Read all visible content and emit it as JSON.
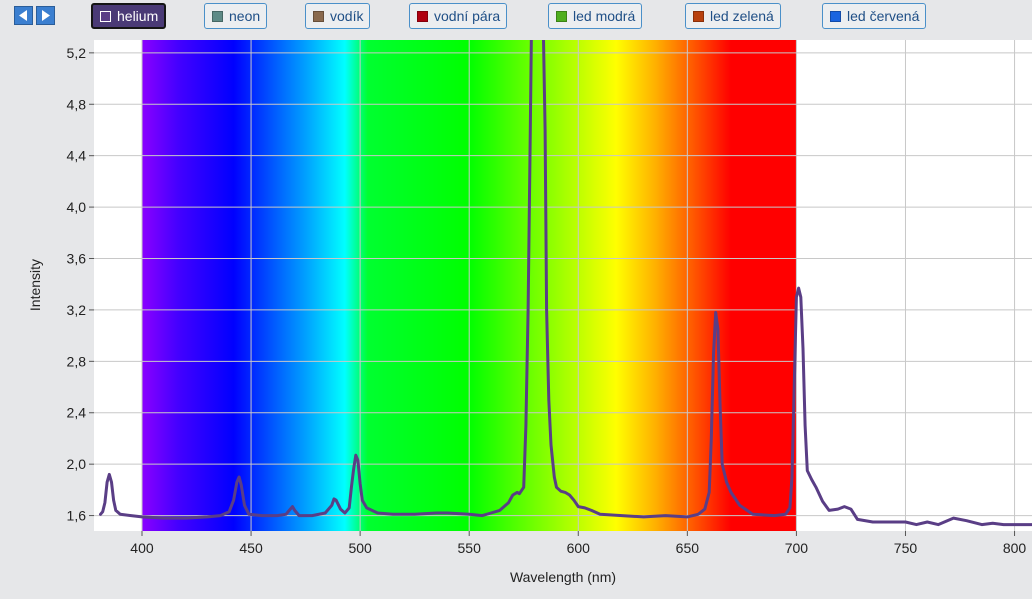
{
  "toolbar": {
    "prev_icon": "triangle-left-icon",
    "next_icon": "triangle-right-icon",
    "legend": [
      {
        "label": "helium",
        "color": "#5a3e86",
        "active": true
      },
      {
        "label": "neon",
        "color": "#5e8a86",
        "active": false
      },
      {
        "label": "vodík",
        "color": "#8a6a4e",
        "active": false
      },
      {
        "label": "vodní pára",
        "color": "#b00010",
        "active": false
      },
      {
        "label": "led modrá",
        "color": "#4fae1e",
        "active": false
      },
      {
        "label": "led zelená",
        "color": "#b8410e",
        "active": false
      },
      {
        "label": "led červená",
        "color": "#1a64e0",
        "active": false
      }
    ]
  },
  "chart_data": {
    "type": "line",
    "title": "",
    "xlabel": "Wavelength (nm)",
    "ylabel": "Intensity",
    "xlim": [
      378,
      808
    ],
    "ylim": [
      1.48,
      5.3
    ],
    "x_ticks": [
      400,
      450,
      500,
      550,
      600,
      650,
      700,
      750,
      800
    ],
    "x_tick_labels": [
      "400",
      "450",
      "500",
      "550",
      "600",
      "650",
      "700",
      "750",
      "800"
    ],
    "y_ticks": [
      1.6,
      2.0,
      2.4,
      2.8,
      3.2,
      3.6,
      4.0,
      4.4,
      4.8,
      5.2
    ],
    "y_tick_labels": [
      "1,6",
      "2,0",
      "2,4",
      "2,8",
      "3,2",
      "3,6",
      "4,0",
      "4,4",
      "4,8",
      "5,2"
    ],
    "grid": true,
    "visible_spectrum_band": [
      400,
      700
    ],
    "series": [
      {
        "name": "helium",
        "color": "#5a3e86",
        "points": [
          [
            381,
            1.61
          ],
          [
            382,
            1.63
          ],
          [
            383,
            1.7
          ],
          [
            384,
            1.86
          ],
          [
            385,
            1.92
          ],
          [
            386,
            1.86
          ],
          [
            387,
            1.72
          ],
          [
            388,
            1.64
          ],
          [
            390,
            1.61
          ],
          [
            395,
            1.6
          ],
          [
            400,
            1.59
          ],
          [
            410,
            1.58
          ],
          [
            420,
            1.58
          ],
          [
            430,
            1.59
          ],
          [
            436,
            1.6
          ],
          [
            440,
            1.63
          ],
          [
            442,
            1.72
          ],
          [
            443.5,
            1.86
          ],
          [
            444.5,
            1.9
          ],
          [
            445.5,
            1.84
          ],
          [
            447,
            1.68
          ],
          [
            449,
            1.61
          ],
          [
            455,
            1.6
          ],
          [
            462,
            1.6
          ],
          [
            466,
            1.61
          ],
          [
            468,
            1.65
          ],
          [
            469,
            1.67
          ],
          [
            470,
            1.64
          ],
          [
            472,
            1.6
          ],
          [
            478,
            1.6
          ],
          [
            484,
            1.62
          ],
          [
            487,
            1.68
          ],
          [
            488,
            1.73
          ],
          [
            489,
            1.72
          ],
          [
            491,
            1.65
          ],
          [
            493,
            1.62
          ],
          [
            495,
            1.66
          ],
          [
            496,
            1.82
          ],
          [
            497,
            1.96
          ],
          [
            498,
            2.07
          ],
          [
            499,
            2.03
          ],
          [
            500,
            1.85
          ],
          [
            501,
            1.72
          ],
          [
            503,
            1.66
          ],
          [
            508,
            1.62
          ],
          [
            515,
            1.61
          ],
          [
            525,
            1.61
          ],
          [
            535,
            1.62
          ],
          [
            540,
            1.62
          ],
          [
            550,
            1.61
          ],
          [
            556,
            1.6
          ],
          [
            560,
            1.62
          ],
          [
            564,
            1.64
          ],
          [
            568,
            1.7
          ],
          [
            570,
            1.76
          ],
          [
            572,
            1.78
          ],
          [
            573,
            1.77
          ],
          [
            575,
            1.82
          ],
          [
            576,
            2.3
          ],
          [
            577,
            3.2
          ],
          [
            578,
            4.6
          ],
          [
            578.5,
            5.35
          ],
          [
            582,
            5.35
          ],
          [
            584,
            5.35
          ],
          [
            584.8,
            4.6
          ],
          [
            585.5,
            3.2
          ],
          [
            586.5,
            2.5
          ],
          [
            587.5,
            2.15
          ],
          [
            589,
            1.9
          ],
          [
            590,
            1.82
          ],
          [
            592,
            1.79
          ],
          [
            594,
            1.78
          ],
          [
            596,
            1.76
          ],
          [
            598,
            1.72
          ],
          [
            600,
            1.67
          ],
          [
            603,
            1.66
          ],
          [
            606,
            1.64
          ],
          [
            610,
            1.61
          ],
          [
            620,
            1.6
          ],
          [
            630,
            1.59
          ],
          [
            640,
            1.6
          ],
          [
            650,
            1.59
          ],
          [
            655,
            1.61
          ],
          [
            658,
            1.65
          ],
          [
            660,
            1.78
          ],
          [
            661,
            2.2
          ],
          [
            662,
            2.85
          ],
          [
            663,
            3.18
          ],
          [
            664,
            3.05
          ],
          [
            665,
            2.45
          ],
          [
            666,
            2.0
          ],
          [
            668,
            1.86
          ],
          [
            670,
            1.78
          ],
          [
            674,
            1.68
          ],
          [
            680,
            1.61
          ],
          [
            690,
            1.6
          ],
          [
            695,
            1.61
          ],
          [
            697,
            1.66
          ],
          [
            698,
            1.9
          ],
          [
            699,
            2.6
          ],
          [
            700,
            3.3
          ],
          [
            701,
            3.37
          ],
          [
            702,
            3.3
          ],
          [
            703,
            2.9
          ],
          [
            704,
            2.3
          ],
          [
            705,
            1.95
          ],
          [
            707,
            1.88
          ],
          [
            709,
            1.82
          ],
          [
            712,
            1.71
          ],
          [
            715,
            1.64
          ],
          [
            719,
            1.65
          ],
          [
            722,
            1.67
          ],
          [
            725,
            1.65
          ],
          [
            728,
            1.57
          ],
          [
            735,
            1.55
          ],
          [
            740,
            1.55
          ],
          [
            750,
            1.55
          ],
          [
            755,
            1.53
          ],
          [
            760,
            1.55
          ],
          [
            765,
            1.53
          ],
          [
            772,
            1.58
          ],
          [
            778,
            1.56
          ],
          [
            785,
            1.53
          ],
          [
            790,
            1.54
          ],
          [
            795,
            1.53
          ],
          [
            800,
            1.53
          ],
          [
            808,
            1.53
          ]
        ]
      }
    ]
  }
}
